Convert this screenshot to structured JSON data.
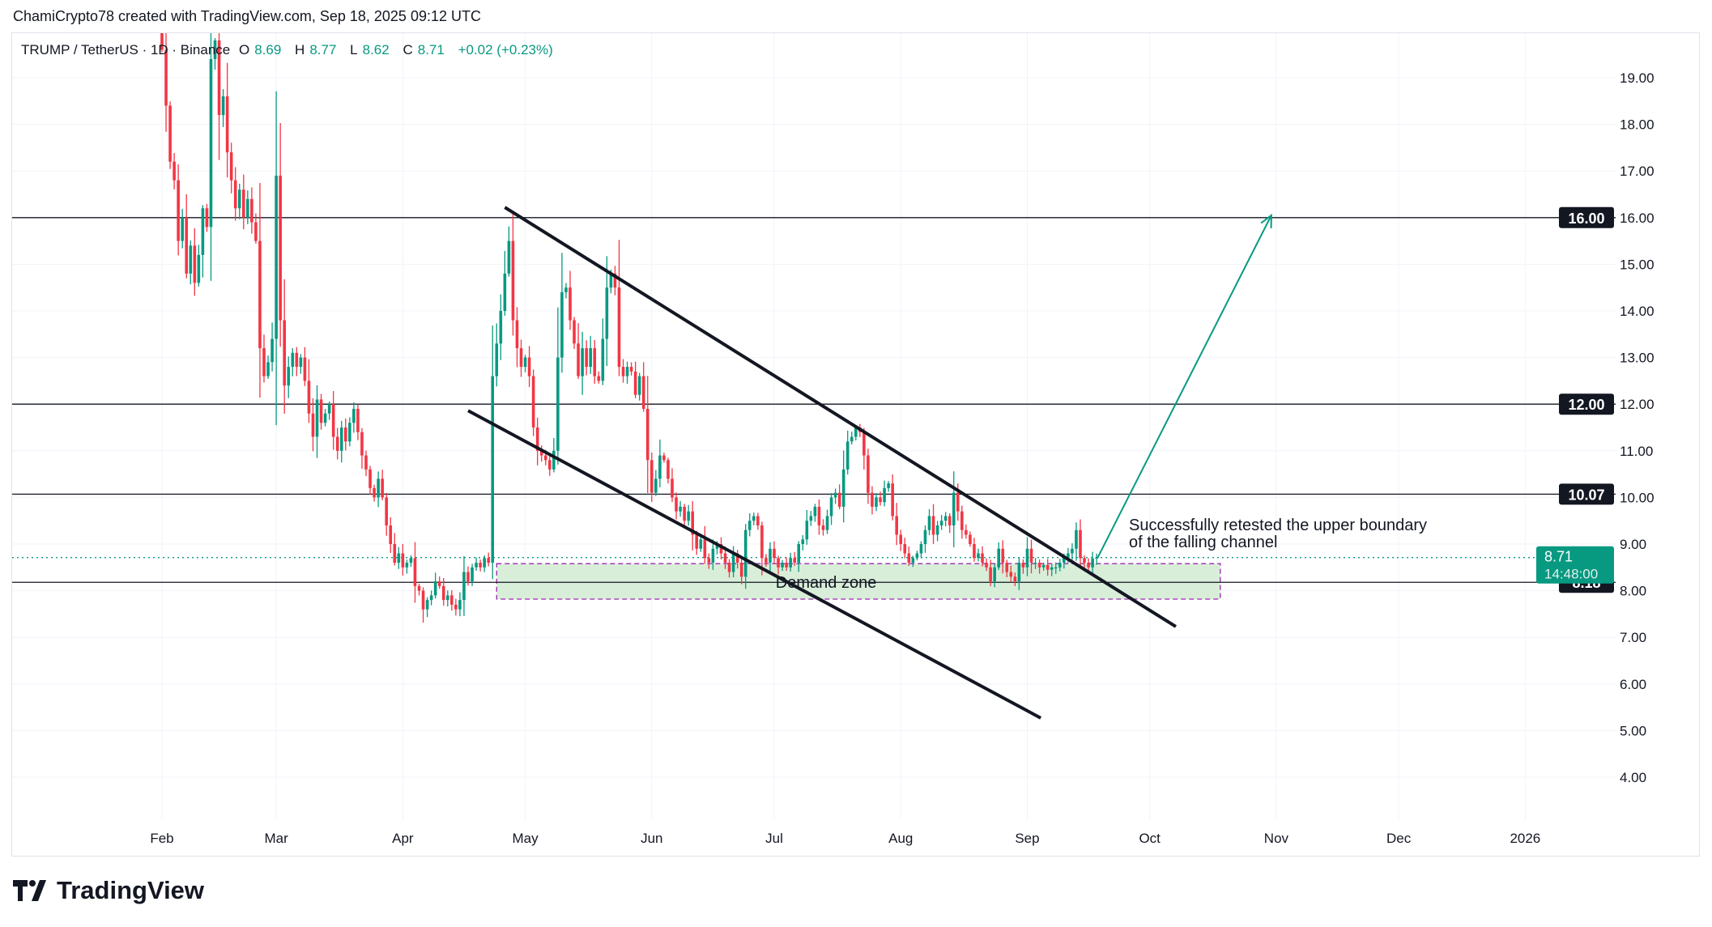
{
  "header": {
    "credit": "ChamiCrypto78 created with TradingView.com, Sep 18, 2025 09:12 UTC"
  },
  "legend": {
    "symbol": "TRUMP / TetherUS · 1D · Binance",
    "o_label": "O",
    "o": "8.69",
    "h_label": "H",
    "h": "8.77",
    "l_label": "L",
    "l": "8.62",
    "c_label": "C",
    "c": "8.71",
    "change": "+0.02 (+0.23%)"
  },
  "branding": {
    "logo_text": "TradingView"
  },
  "colors": {
    "up": "#089981",
    "down": "#f23645",
    "zone_fill": "#d8eed9",
    "zone_border": "#9c27b0",
    "arrow": "#089981"
  },
  "chart_data": {
    "type": "candlestick",
    "title": "TRUMP / TetherUS · 1D · Binance",
    "x_start": "2025-02-01",
    "first_open": 20.5,
    "closes": [
      19.6,
      18.4,
      17.2,
      16.8,
      15.5,
      16.0,
      14.8,
      15.4,
      14.6,
      15.2,
      16.2,
      15.8,
      19.4,
      19.8,
      18.2,
      18.6,
      17.4,
      16.8,
      16.2,
      16.6,
      16.0,
      16.4,
      15.9,
      15.5,
      13.2,
      12.6,
      12.9,
      13.4,
      16.9,
      13.8,
      12.4,
      12.8,
      13.1,
      12.8,
      13.0,
      12.5,
      11.8,
      11.3,
      12.1,
      11.6,
      11.8,
      12.0,
      11.3,
      11.0,
      11.5,
      11.2,
      11.6,
      11.9,
      11.4,
      10.9,
      10.6,
      10.2,
      10.0,
      10.4,
      10.0,
      9.4,
      9.0,
      8.6,
      8.8,
      8.5,
      8.6,
      8.7,
      8.1,
      8.0,
      7.6,
      7.8,
      7.9,
      8.2,
      8.1,
      7.8,
      7.9,
      7.7,
      7.6,
      7.8,
      8.4,
      8.2,
      8.5,
      8.6,
      8.5,
      8.7,
      8.6,
      12.6,
      13.3,
      14.0,
      14.8,
      15.5,
      13.8,
      13.2,
      12.8,
      13.0,
      12.6,
      11.5,
      11.0,
      10.9,
      10.8,
      10.6,
      11.0,
      13.0,
      14.4,
      14.5,
      13.8,
      13.3,
      12.6,
      13.2,
      12.8,
      13.2,
      12.6,
      12.5,
      13.4,
      14.5,
      14.8,
      14.5,
      12.8,
      12.6,
      12.8,
      12.7,
      12.2,
      12.6,
      11.9,
      10.8,
      10.1,
      10.4,
      10.9,
      10.8,
      10.4,
      10.0,
      9.7,
      9.8,
      9.5,
      9.7,
      9.2,
      8.9,
      9.1,
      8.7,
      8.6,
      8.9,
      9.0,
      8.8,
      8.6,
      8.4,
      8.8,
      8.6,
      8.3,
      9.3,
      9.5,
      9.6,
      9.4,
      8.7,
      8.6,
      8.9,
      8.7,
      8.5,
      8.6,
      8.5,
      8.7,
      8.6,
      9.0,
      9.1,
      9.5,
      9.6,
      9.8,
      9.4,
      9.3,
      9.6,
      10.0,
      10.1,
      9.8,
      10.6,
      11.2,
      11.3,
      11.5,
      11.4,
      10.9,
      10.1,
      9.8,
      10.0,
      9.9,
      10.2,
      10.3,
      9.6,
      9.2,
      9.0,
      8.8,
      8.6,
      8.7,
      8.8,
      9.0,
      9.3,
      9.6,
      9.2,
      9.4,
      9.5,
      9.6,
      9.4,
      10.1,
      9.7,
      9.3,
      9.2,
      9.0,
      8.7,
      8.8,
      8.6,
      8.5,
      8.2,
      8.5,
      8.9,
      8.6,
      8.4,
      8.3,
      8.2,
      8.6,
      8.5,
      8.9,
      8.6,
      8.6,
      8.5,
      8.55,
      8.45,
      8.5,
      8.5,
      8.6,
      8.7,
      8.8,
      8.9,
      9.3,
      8.7,
      8.6,
      8.5,
      8.69,
      8.71
    ],
    "y_ticks": [
      "4.00",
      "5.00",
      "6.00",
      "7.00",
      "8.00",
      "9.00",
      "10.00",
      "11.00",
      "12.00",
      "13.00",
      "14.00",
      "15.00",
      "16.00",
      "17.00",
      "18.00",
      "19.00"
    ],
    "ylim": [
      3.2,
      19.6
    ],
    "x_ticks": [
      {
        "label": "Feb",
        "day": 0
      },
      {
        "label": "Mar",
        "day": 28
      },
      {
        "label": "Apr",
        "day": 59
      },
      {
        "label": "May",
        "day": 89
      },
      {
        "label": "Jun",
        "day": 120
      },
      {
        "label": "Jul",
        "day": 150
      },
      {
        "label": "Aug",
        "day": 181
      },
      {
        "label": "Sep",
        "day": 212
      },
      {
        "label": "Oct",
        "day": 242
      },
      {
        "label": "Nov",
        "day": 273
      },
      {
        "label": "Dec",
        "day": 303
      },
      {
        "label": "2026",
        "day": 334
      }
    ],
    "horizontal_levels": [
      {
        "price": 16.0,
        "label": "16.00"
      },
      {
        "price": 12.0,
        "label": "12.00"
      },
      {
        "price": 10.07,
        "label": "10.07"
      },
      {
        "price": 8.18,
        "label": "8.18"
      }
    ],
    "last_price": {
      "price": 8.71,
      "label": "8.71",
      "countdown": "14:48:00"
    },
    "trendlines": [
      {
        "name": "upper-channel",
        "from": [
          84,
          16.22
        ],
        "to": [
          248.4,
          7.23
        ]
      },
      {
        "name": "lower-channel",
        "from": [
          75,
          11.86
        ],
        "to": [
          215.3,
          5.27
        ]
      }
    ],
    "arrow": {
      "from": [
        229.2,
        8.7
      ],
      "to": [
        271.8,
        16.05
      ]
    },
    "demand_zone": {
      "day_from": 82,
      "day_to": 259.3,
      "price_top": 8.58,
      "price_bottom": 7.82,
      "label": "Demand zone"
    },
    "annotation": {
      "line1": "Successfully retested the upper boundary",
      "line2": "of the falling channel",
      "day": 229.5,
      "price": 9.3
    }
  }
}
